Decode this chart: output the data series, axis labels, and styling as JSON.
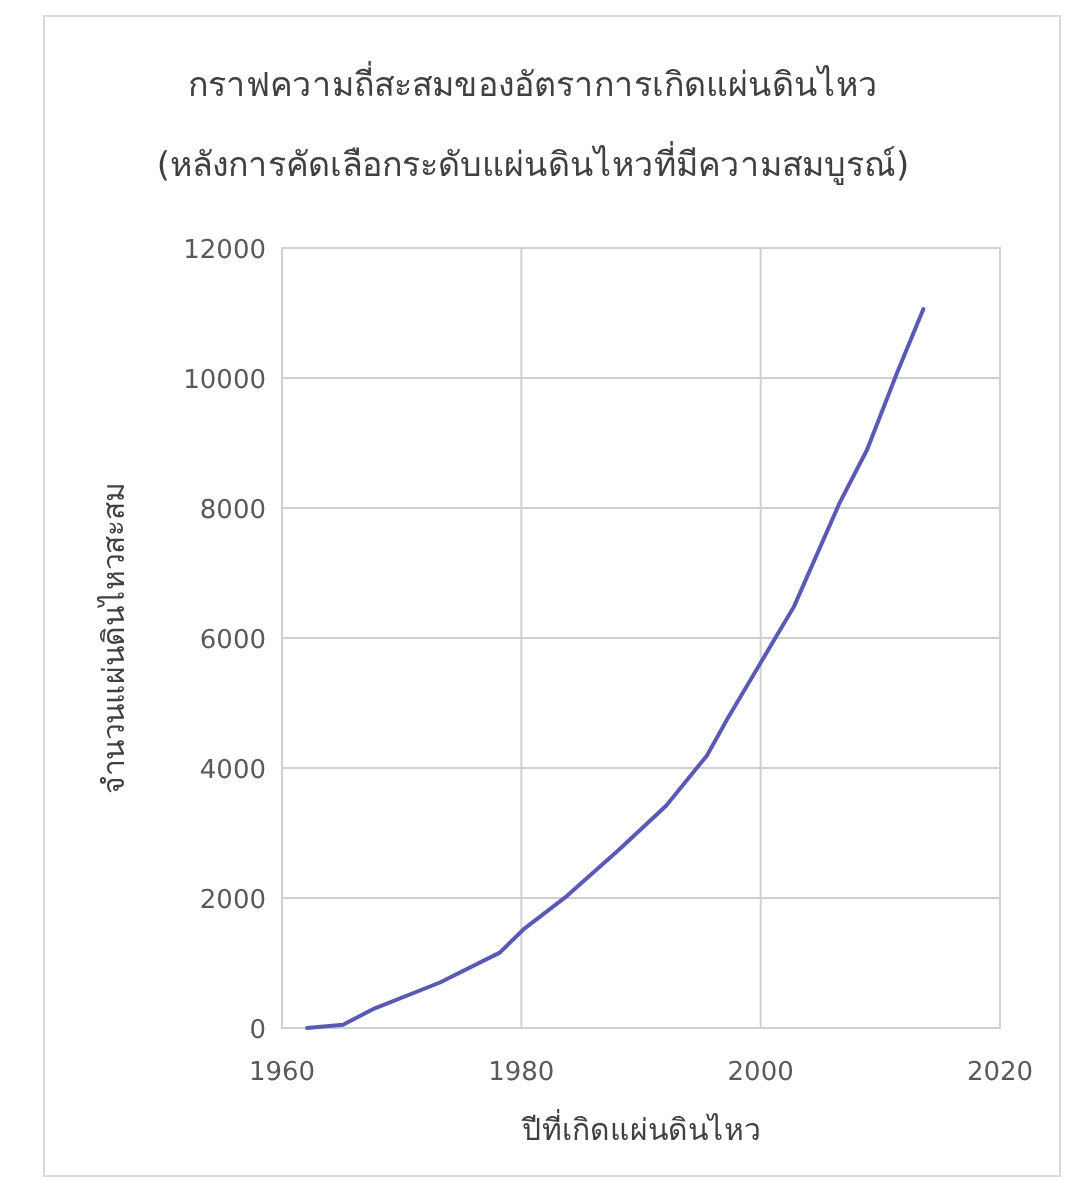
{
  "chart_data": {
    "type": "line",
    "title": "กราฟความถี่สะสมของอัตราการเกิดแผ่นดินไหว",
    "subtitle": "(หลังการคัดเลือกระดับแผ่นดินไหวที่มีความสมบูรณ์)",
    "xlabel": "ปีที่เกิดแผ่นดินไหว",
    "ylabel": "จำนวนแผ่นดินไหวสะสม",
    "series": [
      {
        "color": "#5a5ab4",
        "x": [
          1962.1,
          1965.1,
          1967.6,
          1973.2,
          1978.2,
          1980.2,
          1983.8,
          1988.2,
          1992.1,
          1995.5,
          1997.2,
          2000.0,
          2002.8,
          2006.6,
          2008.9,
          2011.4,
          2013.6
        ],
        "values": [
          0,
          50,
          290,
          700,
          1160,
          1520,
          2030,
          2750,
          3420,
          4190,
          4750,
          5620,
          6490,
          8080,
          8900,
          10080,
          11060
        ]
      }
    ],
    "xlim": [
      1960,
      2020
    ],
    "xticks": [
      1960,
      1980,
      2000,
      2020
    ],
    "ylim": [
      0,
      12000
    ],
    "yticks": [
      0,
      2000,
      4000,
      6000,
      8000,
      10000,
      12000
    ],
    "grid": true,
    "marker": "none",
    "line_style": "solid"
  }
}
